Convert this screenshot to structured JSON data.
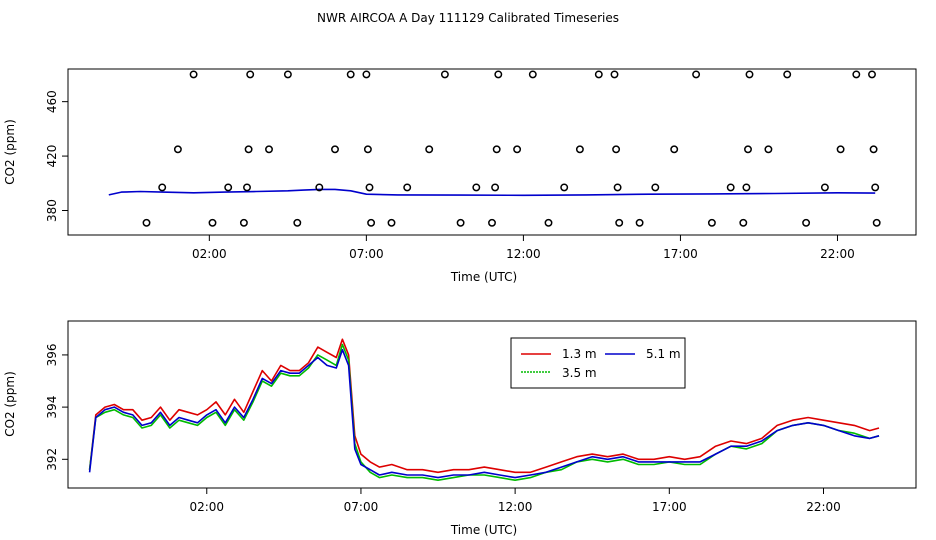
{
  "page": {
    "title": "NWR AIRCOA A  Day 111129  Calibrated Timeseries"
  },
  "colors": {
    "series_1_3m": "#dd0000",
    "series_3_5m": "#00bb00",
    "series_5_1m": "#0000cc",
    "axis": "#000000",
    "background": "#ffffff"
  },
  "chart_data": [
    {
      "type": "scatter+line",
      "title": "NWR AIRCOA A  Day 111129  Calibrated Timeseries",
      "xlabel": "Time (UTC)",
      "ylabel": "CO2 (ppm)",
      "x_unit": "hours UTC",
      "xlim": [
        -2.5,
        24.5
      ],
      "ylim": [
        362,
        484
      ],
      "x_ticks": [
        {
          "value": 2,
          "label": "02:00"
        },
        {
          "value": 7,
          "label": "07:00"
        },
        {
          "value": 12,
          "label": "12:00"
        },
        {
          "value": 17,
          "label": "17:00"
        },
        {
          "value": 22,
          "label": "22:00"
        }
      ],
      "y_ticks": [
        {
          "value": 380,
          "label": "380"
        },
        {
          "value": 420,
          "label": "420"
        },
        {
          "value": 460,
          "label": "460"
        }
      ],
      "grid": false,
      "legend": "none",
      "calibration_points": [
        [
          0.0,
          371
        ],
        [
          0.5,
          397
        ],
        [
          1.0,
          425
        ],
        [
          1.5,
          480
        ],
        [
          2.1,
          371
        ],
        [
          2.6,
          397
        ],
        [
          3.1,
          371
        ],
        [
          3.2,
          397
        ],
        [
          3.25,
          425
        ],
        [
          3.3,
          480
        ],
        [
          3.9,
          425
        ],
        [
          4.5,
          480
        ],
        [
          4.8,
          371
        ],
        [
          5.5,
          397
        ],
        [
          6.0,
          425
        ],
        [
          6.5,
          480
        ],
        [
          7.0,
          480
        ],
        [
          7.05,
          425
        ],
        [
          7.1,
          397
        ],
        [
          7.15,
          371
        ],
        [
          7.8,
          371
        ],
        [
          8.3,
          397
        ],
        [
          9.0,
          425
        ],
        [
          9.5,
          480
        ],
        [
          10.0,
          371
        ],
        [
          10.5,
          397
        ],
        [
          11.0,
          371
        ],
        [
          11.1,
          397
        ],
        [
          11.15,
          425
        ],
        [
          11.2,
          480
        ],
        [
          11.8,
          425
        ],
        [
          12.3,
          480
        ],
        [
          12.8,
          371
        ],
        [
          13.3,
          397
        ],
        [
          13.8,
          425
        ],
        [
          14.4,
          480
        ],
        [
          14.9,
          480
        ],
        [
          14.95,
          425
        ],
        [
          15.0,
          397
        ],
        [
          15.05,
          371
        ],
        [
          15.7,
          371
        ],
        [
          16.2,
          397
        ],
        [
          16.8,
          425
        ],
        [
          17.5,
          480
        ],
        [
          18.0,
          371
        ],
        [
          18.6,
          397
        ],
        [
          19.0,
          371
        ],
        [
          19.1,
          397
        ],
        [
          19.15,
          425
        ],
        [
          19.2,
          480
        ],
        [
          19.8,
          425
        ],
        [
          20.4,
          480
        ],
        [
          21.0,
          371
        ],
        [
          21.6,
          397
        ],
        [
          22.1,
          425
        ],
        [
          22.6,
          480
        ],
        [
          23.1,
          480
        ],
        [
          23.15,
          425
        ],
        [
          23.2,
          397
        ],
        [
          23.25,
          371
        ]
      ],
      "series": [
        {
          "key": "blue_line",
          "color_ref": "series_5_1m",
          "x": [
            -1.2,
            -0.8,
            -0.2,
            0.5,
            1.5,
            2.5,
            3.5,
            4.5,
            5.0,
            5.5,
            6.0,
            6.5,
            7.0,
            8.0,
            10.0,
            12.0,
            14.0,
            16.0,
            18.0,
            20.0,
            22.0,
            23.2
          ],
          "y": [
            391.5,
            393.5,
            394,
            393.5,
            393,
            393.5,
            394,
            394.5,
            395,
            395.5,
            395.5,
            394.5,
            392,
            391.5,
            391.3,
            391.2,
            391.5,
            392,
            392.2,
            392.5,
            393,
            392.8
          ]
        }
      ]
    },
    {
      "type": "line",
      "xlabel": "Time (UTC)",
      "ylabel": "CO2 (ppm)",
      "x_unit": "hours UTC",
      "xlim": [
        -2.5,
        25
      ],
      "ylim": [
        390.9,
        397.3
      ],
      "x_ticks": [
        {
          "value": 2,
          "label": "02:00"
        },
        {
          "value": 7,
          "label": "07:00"
        },
        {
          "value": 12,
          "label": "12:00"
        },
        {
          "value": 17,
          "label": "17:00"
        },
        {
          "value": 22,
          "label": "22:00"
        }
      ],
      "y_ticks": [
        {
          "value": 392,
          "label": "392"
        },
        {
          "value": 394,
          "label": "394"
        },
        {
          "value": 396,
          "label": "396"
        }
      ],
      "grid": false,
      "legend": "top-center",
      "series": [
        {
          "name": "1.3 m",
          "color_ref": "series_1_3m",
          "x": [
            -1.8,
            -1.6,
            -1.3,
            -1.0,
            -0.7,
            -0.4,
            -0.1,
            0.2,
            0.5,
            0.8,
            1.1,
            1.4,
            1.7,
            2.0,
            2.3,
            2.6,
            2.9,
            3.2,
            3.5,
            3.8,
            4.1,
            4.4,
            4.7,
            5.0,
            5.3,
            5.6,
            5.9,
            6.2,
            6.4,
            6.6,
            6.8,
            7.0,
            7.3,
            7.6,
            8.0,
            8.5,
            9.0,
            9.5,
            10.0,
            10.5,
            11.0,
            11.5,
            12.0,
            12.5,
            13.0,
            13.5,
            14.0,
            14.5,
            15.0,
            15.5,
            16.0,
            16.5,
            17.0,
            17.5,
            18.0,
            18.5,
            19.0,
            19.5,
            20.0,
            20.5,
            21.0,
            21.5,
            22.0,
            22.5,
            23.0,
            23.5,
            23.8
          ],
          "y": [
            391.6,
            393.7,
            394.0,
            394.1,
            393.9,
            393.9,
            393.5,
            393.6,
            394.0,
            393.5,
            393.9,
            393.8,
            393.7,
            393.9,
            394.2,
            393.7,
            394.3,
            393.8,
            394.6,
            395.4,
            395.0,
            395.6,
            395.4,
            395.4,
            395.7,
            396.3,
            396.1,
            395.9,
            396.6,
            396.0,
            392.9,
            392.2,
            391.9,
            391.7,
            391.8,
            391.6,
            391.6,
            391.5,
            391.6,
            391.6,
            391.7,
            391.6,
            391.5,
            391.5,
            391.7,
            391.9,
            392.1,
            392.2,
            392.1,
            392.2,
            392.0,
            392.0,
            392.1,
            392.0,
            392.1,
            392.5,
            392.7,
            392.6,
            392.8,
            393.3,
            393.5,
            393.6,
            393.5,
            393.4,
            393.3,
            393.1,
            393.2
          ]
        },
        {
          "name": "3.5 m",
          "color_ref": "series_3_5m",
          "x": [
            -1.8,
            -1.6,
            -1.3,
            -1.0,
            -0.7,
            -0.4,
            -0.1,
            0.2,
            0.5,
            0.8,
            1.1,
            1.4,
            1.7,
            2.0,
            2.3,
            2.6,
            2.9,
            3.2,
            3.5,
            3.8,
            4.1,
            4.4,
            4.7,
            5.0,
            5.3,
            5.6,
            5.9,
            6.2,
            6.4,
            6.6,
            6.8,
            7.0,
            7.3,
            7.6,
            8.0,
            8.5,
            9.0,
            9.5,
            10.0,
            10.5,
            11.0,
            11.5,
            12.0,
            12.5,
            13.0,
            13.5,
            14.0,
            14.5,
            15.0,
            15.5,
            16.0,
            16.5,
            17.0,
            17.5,
            18.0,
            18.5,
            19.0,
            19.5,
            20.0,
            20.5,
            21.0,
            21.5,
            22.0,
            22.5,
            23.0,
            23.5,
            23.8
          ],
          "y": [
            391.6,
            393.6,
            393.8,
            393.9,
            393.7,
            393.6,
            393.2,
            393.3,
            393.7,
            393.2,
            393.5,
            393.4,
            393.3,
            393.6,
            393.8,
            393.3,
            393.9,
            393.5,
            394.2,
            395.0,
            394.8,
            395.3,
            395.2,
            395.2,
            395.5,
            396.0,
            395.8,
            395.6,
            396.4,
            395.8,
            392.6,
            391.9,
            391.5,
            391.3,
            391.4,
            391.3,
            391.3,
            391.2,
            391.3,
            391.4,
            391.4,
            391.3,
            391.2,
            391.3,
            391.5,
            391.6,
            391.9,
            392.0,
            391.9,
            392.0,
            391.8,
            391.8,
            391.9,
            391.8,
            391.8,
            392.2,
            392.5,
            392.4,
            392.6,
            393.1,
            393.3,
            393.4,
            393.3,
            393.1,
            393.0,
            392.8,
            392.9
          ]
        },
        {
          "name": "5.1 m",
          "color_ref": "series_5_1m",
          "x": [
            -1.8,
            -1.6,
            -1.3,
            -1.0,
            -0.7,
            -0.4,
            -0.1,
            0.2,
            0.5,
            0.8,
            1.1,
            1.4,
            1.7,
            2.0,
            2.3,
            2.6,
            2.9,
            3.2,
            3.5,
            3.8,
            4.1,
            4.4,
            4.7,
            5.0,
            5.3,
            5.6,
            5.9,
            6.2,
            6.4,
            6.6,
            6.8,
            7.0,
            7.3,
            7.6,
            8.0,
            8.5,
            9.0,
            9.5,
            10.0,
            10.5,
            11.0,
            11.5,
            12.0,
            12.5,
            13.0,
            13.5,
            14.0,
            14.5,
            15.0,
            15.5,
            16.0,
            16.5,
            17.0,
            17.5,
            18.0,
            18.5,
            19.0,
            19.5,
            20.0,
            20.5,
            21.0,
            21.5,
            22.0,
            22.5,
            23.0,
            23.5,
            23.8
          ],
          "y": [
            391.5,
            393.6,
            393.9,
            394.0,
            393.8,
            393.7,
            393.3,
            393.4,
            393.8,
            393.3,
            393.6,
            393.5,
            393.4,
            393.7,
            393.9,
            393.4,
            394.0,
            393.6,
            394.3,
            395.1,
            394.9,
            395.4,
            395.3,
            395.3,
            395.6,
            395.9,
            395.6,
            395.5,
            396.2,
            395.6,
            392.4,
            391.8,
            391.6,
            391.4,
            391.5,
            391.4,
            391.4,
            391.3,
            391.4,
            391.4,
            391.5,
            391.4,
            391.3,
            391.4,
            391.5,
            391.7,
            391.9,
            392.1,
            392.0,
            392.1,
            391.9,
            391.9,
            391.9,
            391.9,
            391.9,
            392.2,
            392.5,
            392.5,
            392.7,
            393.1,
            393.3,
            393.4,
            393.3,
            393.1,
            392.9,
            392.8,
            392.9
          ]
        }
      ]
    }
  ]
}
